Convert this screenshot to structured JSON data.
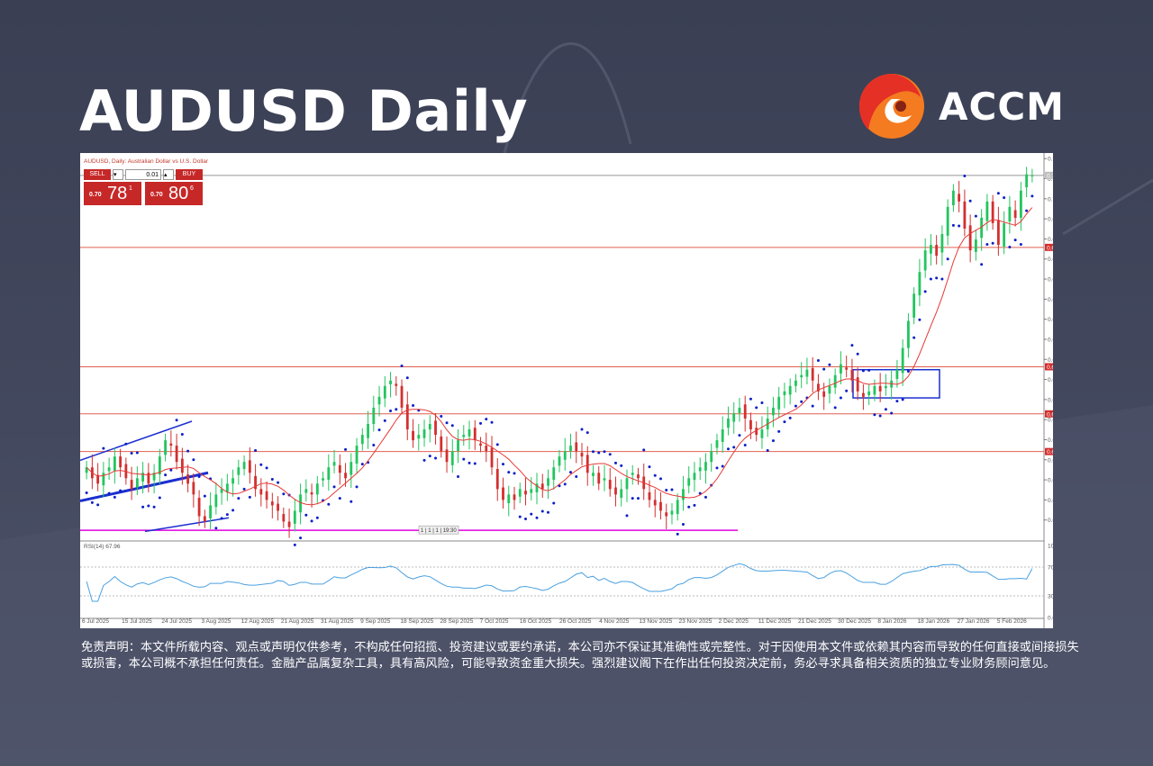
{
  "header": {
    "title": "AUDUSD Daily",
    "brand": "ACCM"
  },
  "platform": {
    "symbol_caption": "AUDUSD, Daily:  Australian Dollar vs U.S. Dollar",
    "sell_label": "SELL",
    "buy_label": "BUY",
    "lot": "0.01",
    "sell_price_prefix": "0.70",
    "sell_price_big": "78",
    "sell_price_sup": "1",
    "buy_price_prefix": "0.70",
    "buy_price_big": "80",
    "buy_price_sup": "6",
    "time_marker": "1 | 1 | 1 | 19:30",
    "rsi_caption": "RSI(14) 67.96"
  },
  "colors": {
    "background": "#3a3f54",
    "bull": "#22c55e",
    "bear": "#d32f2f",
    "sar_dots": "#0b1fc7",
    "ma_line": "#e53935",
    "level_lines": "#e06050",
    "rsi_line": "#4aa0e0",
    "magenta_line": "#e000e0",
    "channel": "#1b2fd0",
    "brand_orange": "#f47b20",
    "brand_red": "#e53026"
  },
  "chart_data": {
    "type": "candlestick",
    "title": "AUDUSD, Daily:  Australian Dollar vs U.S. Dollar",
    "price_axis_ticks": [
      "0.71090",
      "0.70720",
      "0.70350",
      "0.69980",
      "0.69610",
      "0.69240",
      "0.68870",
      "0.68500",
      "0.68130",
      "0.67760",
      "0.67390",
      "0.67020",
      "0.66650",
      "0.66280",
      "0.65910",
      "0.65540",
      "0.65170",
      "0.64800",
      "0.64430"
    ],
    "ylim": [
      0.6406,
      0.7116
    ],
    "highlighted_levels": [
      {
        "label": "0.70781",
        "value": 0.70781,
        "style": "current"
      },
      {
        "label": "0.69454",
        "value": 0.69454,
        "style": "resistance"
      },
      {
        "label": "0.67254",
        "value": 0.67254,
        "style": "resistance"
      },
      {
        "label": "0.66386",
        "value": 0.66386,
        "style": "support"
      },
      {
        "label": "0.65691",
        "value": 0.65691,
        "style": "support"
      }
    ],
    "magenta_level": 0.6424,
    "date_ticks": [
      "6 Jul 2025",
      "15 Jul 2025",
      "24 Jul 2025",
      "3 Aug 2025",
      "12 Aug 2025",
      "21 Aug 2025",
      "31 Aug 2025",
      "9 Sep 2025",
      "18 Sep 2025",
      "28 Sep 2025",
      "7 Oct 2025",
      "16 Oct 2025",
      "26 Oct 2025",
      "4 Nov 2025",
      "13 Nov 2025",
      "23 Nov 2025",
      "2 Dec 2025",
      "11 Dec 2025",
      "21 Dec 2025",
      "30 Dec 2025",
      "8 Jan 2026",
      "18 Jan 2026",
      "27 Jan 2026",
      "5 Feb 2026"
    ],
    "close_series": [
      0.654,
      0.652,
      0.651,
      0.653,
      0.654,
      0.656,
      0.654,
      0.652,
      0.65,
      0.652,
      0.653,
      0.651,
      0.653,
      0.656,
      0.659,
      0.658,
      0.655,
      0.653,
      0.651,
      0.649,
      0.645,
      0.644,
      0.647,
      0.649,
      0.65,
      0.651,
      0.652,
      0.654,
      0.655,
      0.653,
      0.65,
      0.649,
      0.648,
      0.647,
      0.646,
      0.644,
      0.643,
      0.646,
      0.649,
      0.65,
      0.649,
      0.651,
      0.652,
      0.654,
      0.655,
      0.653,
      0.652,
      0.655,
      0.658,
      0.66,
      0.662,
      0.665,
      0.667,
      0.669,
      0.67,
      0.669,
      0.665,
      0.661,
      0.659,
      0.66,
      0.661,
      0.662,
      0.66,
      0.657,
      0.655,
      0.657,
      0.659,
      0.66,
      0.661,
      0.659,
      0.658,
      0.657,
      0.654,
      0.65,
      0.648,
      0.649,
      0.648,
      0.65,
      0.649,
      0.65,
      0.651,
      0.65,
      0.652,
      0.654,
      0.656,
      0.657,
      0.658,
      0.657,
      0.656,
      0.653,
      0.653,
      0.651,
      0.652,
      0.65,
      0.649,
      0.65,
      0.652,
      0.653,
      0.652,
      0.65,
      0.648,
      0.647,
      0.646,
      0.645,
      0.646,
      0.648,
      0.65,
      0.652,
      0.653,
      0.654,
      0.655,
      0.657,
      0.659,
      0.661,
      0.663,
      0.664,
      0.665,
      0.663,
      0.661,
      0.66,
      0.661,
      0.663,
      0.665,
      0.667,
      0.668,
      0.669,
      0.67,
      0.671,
      0.672,
      0.67,
      0.668,
      0.667,
      0.669,
      0.671,
      0.673,
      0.672,
      0.67,
      0.668,
      0.667,
      0.668,
      0.669,
      0.668,
      0.669,
      0.67,
      0.672,
      0.676,
      0.681,
      0.686,
      0.69,
      0.694,
      0.695,
      0.693,
      0.697,
      0.702,
      0.705,
      0.703,
      0.698,
      0.694,
      0.696,
      0.7,
      0.703,
      0.699,
      0.695,
      0.699,
      0.702,
      0.7,
      0.705,
      0.708,
      0.7078
    ],
    "rsi": {
      "label": "RSI(14) 67.96",
      "value": 67.96,
      "ticks": [
        "100.00",
        "70.00",
        "30.00",
        "0.00"
      ],
      "ylim": [
        0,
        100
      ]
    },
    "grid": false,
    "legend": "none"
  },
  "disclaimer": "免责声明：本文件所载内容、观点或声明仅供参考，不构成任何招揽、投资建议或要约承诺，本公司亦不保证其准确性或完整性。对于因使用本文件或依赖其内容而导致的任何直接或间接损失或损害，本公司概不承担任何责任。金融产品属复杂工具，具有高风险，可能导致资金重大损失。强烈建议阁下在作出任何投资决定前，务必寻求具备相关资质的独立专业财务顾问意见。"
}
